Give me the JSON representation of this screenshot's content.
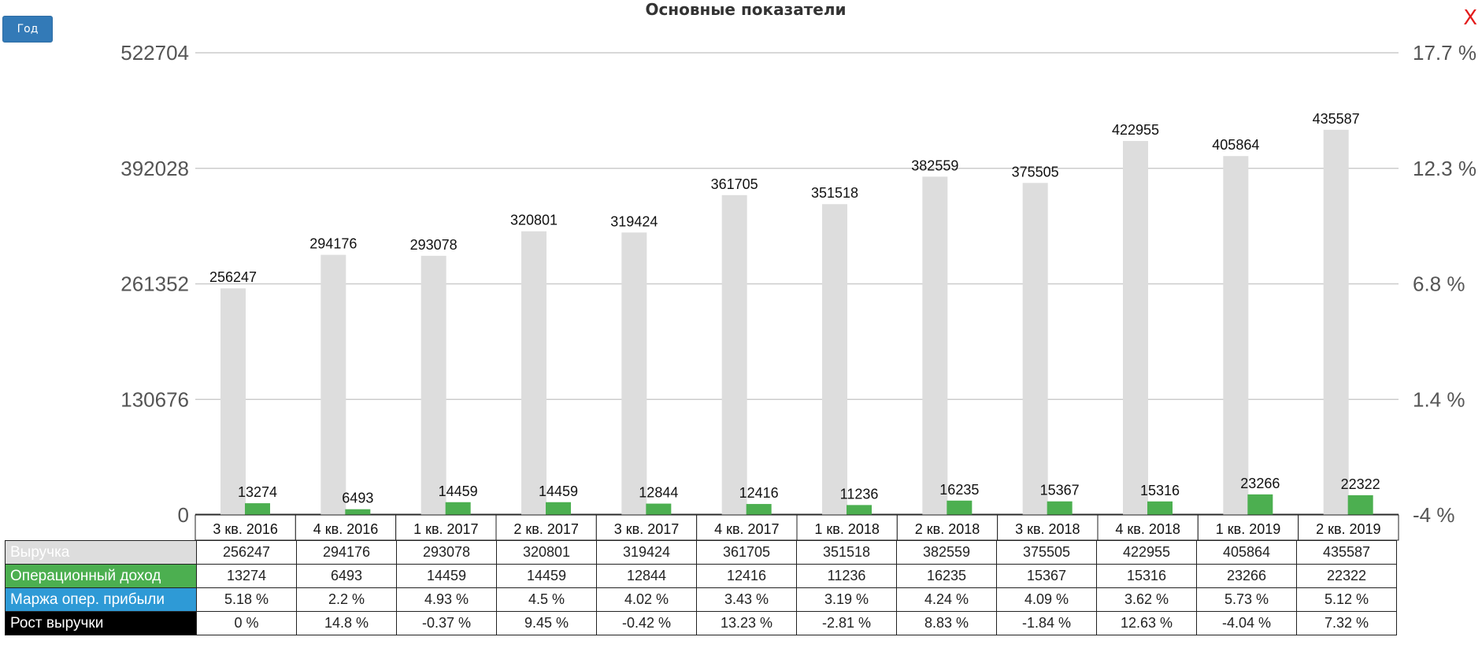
{
  "header": {
    "title": "Основные показатели",
    "year_button": "Год",
    "close": "X"
  },
  "colors": {
    "revenue": "#dddddd",
    "op_income": "#4caf50",
    "margin": "#2e9ad6",
    "growth": "#000000",
    "button": "#337ab7",
    "close": "#e31b1b"
  },
  "chart_data": {
    "type": "bar",
    "categories": [
      "3 кв. 2016",
      "4 кв. 2016",
      "1 кв. 2017",
      "2 кв. 2017",
      "3 кв. 2017",
      "4 кв. 2017",
      "1 кв. 2018",
      "2 кв. 2018",
      "3 кв. 2018",
      "4 кв. 2018",
      "1 кв. 2019",
      "2 кв. 2019"
    ],
    "series": [
      {
        "name": "Выручка",
        "values": [
          256247,
          294176,
          293078,
          320801,
          319424,
          361705,
          351518,
          382559,
          375505,
          422955,
          405864,
          435587
        ]
      },
      {
        "name": "Операционный доход",
        "values": [
          13274,
          6493,
          14459,
          14459,
          12844,
          12416,
          11236,
          16235,
          15367,
          15316,
          23266,
          22322
        ]
      }
    ],
    "ylim": [
      0,
      522704
    ],
    "yticks": [
      "0",
      "130676",
      "261352",
      "392028",
      "522704"
    ],
    "y2ticks": [
      "-4 %",
      "1.4 %",
      "6.8 %",
      "12.3 %",
      "17.7 %"
    ],
    "grid": true
  },
  "table": {
    "rows": [
      {
        "label": "Выручка",
        "color": "#dddddd",
        "values": [
          "256247",
          "294176",
          "293078",
          "320801",
          "319424",
          "361705",
          "351518",
          "382559",
          "375505",
          "422955",
          "405864",
          "435587"
        ]
      },
      {
        "label": "Операционный доход",
        "color": "#4caf50",
        "values": [
          "13274",
          "6493",
          "14459",
          "14459",
          "12844",
          "12416",
          "11236",
          "16235",
          "15367",
          "15316",
          "23266",
          "22322"
        ]
      },
      {
        "label": "Маржа опер. прибыли",
        "color": "#2e9ad6",
        "values": [
          "5.18 %",
          "2.2 %",
          "4.93 %",
          "4.5 %",
          "4.02 %",
          "3.43 %",
          "3.19 %",
          "4.24 %",
          "4.09 %",
          "3.62 %",
          "5.73 %",
          "5.12 %"
        ]
      },
      {
        "label": "Рост выручки",
        "color": "#000000",
        "values": [
          "0 %",
          "14.8 %",
          "-0.37 %",
          "9.45 %",
          "-0.42 %",
          "13.23 %",
          "-2.81 %",
          "8.83 %",
          "-1.84 %",
          "12.63 %",
          "-4.04 %",
          "7.32 %"
        ]
      }
    ]
  }
}
